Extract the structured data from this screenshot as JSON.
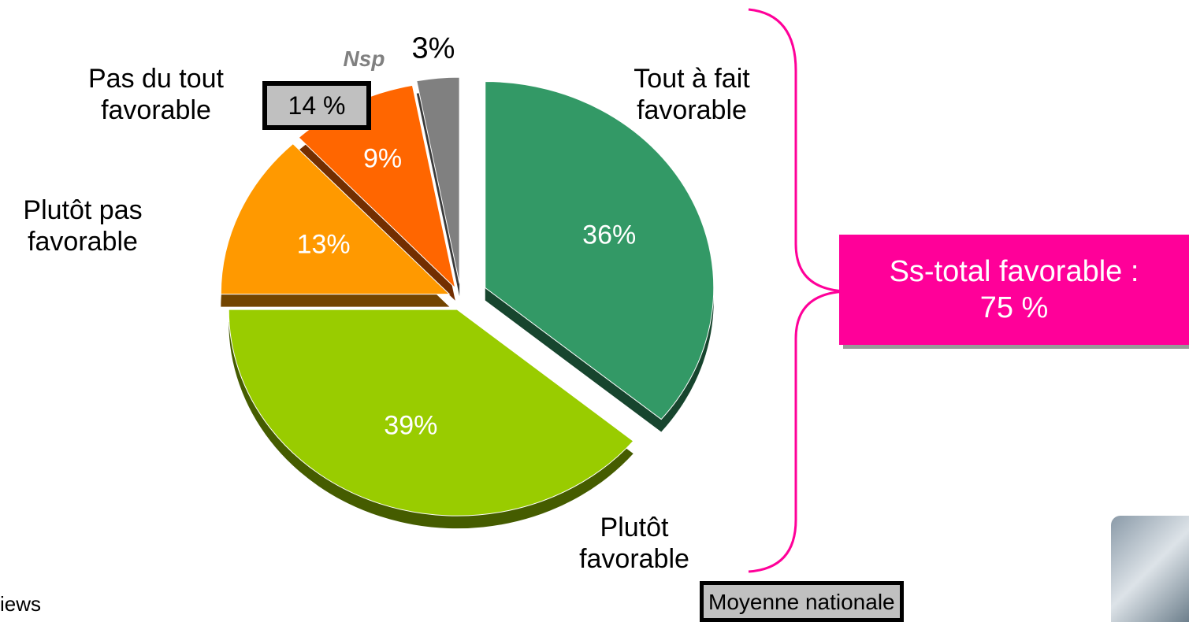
{
  "chart_data": {
    "type": "pie",
    "categories": [
      "Tout à fait favorable",
      "Plutôt favorable",
      "Plutôt pas favorable",
      "Pas du tout favorable",
      "Nsp"
    ],
    "values": [
      36,
      39,
      13,
      9,
      3
    ],
    "value_labels": [
      "36%",
      "39%",
      "13%",
      "9%",
      "3%"
    ],
    "colors": [
      "#339966",
      "#99cc00",
      "#ff9900",
      "#ff6600",
      "#808080"
    ],
    "group_label": "14 %",
    "subtotal": "Ss-total favorable : 75 %",
    "average": "Moyenne nationale",
    "footnote": "iews"
  }
}
